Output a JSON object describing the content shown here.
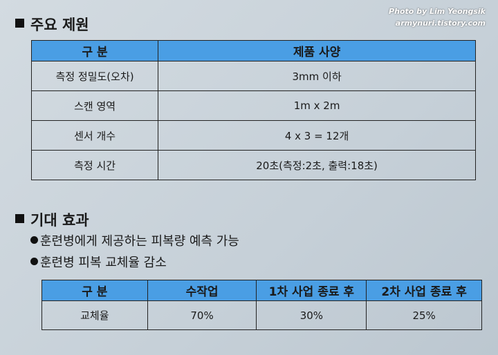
{
  "watermark": {
    "line1": "Photo by Lim Yeongsik",
    "line2": "armynuri.tistory.com"
  },
  "section1": {
    "title": "주요 제원",
    "table": {
      "header": [
        "구 분",
        "제품 사양"
      ],
      "rows": [
        [
          "측정 정밀도(오차)",
          "3mm 이하"
        ],
        [
          "스캔 영역",
          "1m x 2m"
        ],
        [
          "센서 개수",
          "4 x 3 = 12개"
        ],
        [
          "측정 시간",
          "20초(측정:2초, 출력:18초)"
        ]
      ]
    }
  },
  "section2": {
    "title": "기대 효과",
    "bullets": [
      "훈련병에게 제공하는 피복량 예측 가능",
      "훈련병 피복 교체율 감소"
    ],
    "table": {
      "header": [
        "구 분",
        "수작업",
        "1차 사업 종료 후",
        "2차 사업 종료 후"
      ],
      "rows": [
        [
          "교체율",
          "70%",
          "30%",
          "25%"
        ]
      ]
    }
  }
}
